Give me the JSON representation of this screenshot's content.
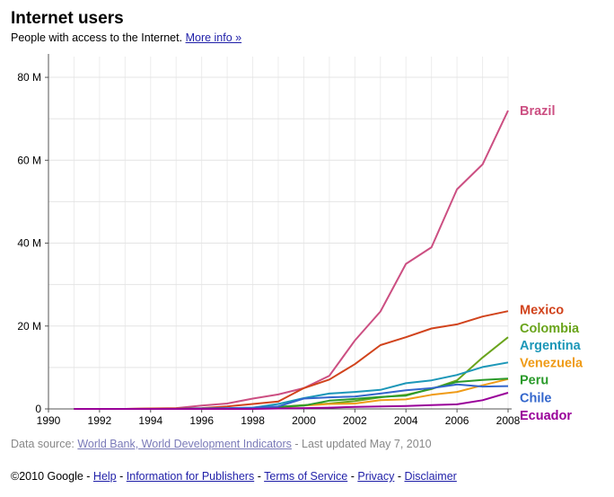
{
  "header": {
    "title": "Internet users",
    "subtitle": "People with access to the Internet.",
    "more_info_link": "More info »"
  },
  "source": {
    "prefix": "Data source:",
    "link": "World Bank, World Development Indicators",
    "suffix": "- Last updated May 7, 2010"
  },
  "footer": {
    "copyright": "©2010 Google -",
    "links": [
      "Help",
      "Information for Publishers",
      "Terms of Service",
      "Privacy",
      "Disclaimer"
    ]
  },
  "chart_data": {
    "type": "line",
    "title": "",
    "xlabel": "",
    "ylabel": "",
    "xlim": [
      1990,
      2008
    ],
    "ylim": [
      0,
      85
    ],
    "x_ticks": [
      1990,
      1992,
      1994,
      1996,
      1998,
      2000,
      2002,
      2004,
      2006,
      2008
    ],
    "x_tick_labels": [
      "1990",
      "1992",
      "1994",
      "1996",
      "1998",
      "2000",
      "2002",
      "2004",
      "2006",
      "2008"
    ],
    "y_ticks": [
      0,
      20,
      40,
      60,
      80
    ],
    "y_tick_labels": [
      "0",
      "20 M",
      "40 M",
      "60 M",
      "80 M"
    ],
    "grid": true,
    "legend": "right, at line ends",
    "x": [
      1991,
      1992,
      1993,
      1994,
      1995,
      1996,
      1997,
      1998,
      1999,
      2000,
      2001,
      2002,
      2003,
      2004,
      2005,
      2006,
      2007,
      2008
    ],
    "series": [
      {
        "name": "Brazil",
        "color": "#cc4f82",
        "label_value": 72,
        "values": [
          0,
          0,
          0,
          0.1,
          0.2,
          0.8,
          1.3,
          2.5,
          3.5,
          5,
          8,
          16.5,
          23.5,
          35,
          39,
          53,
          59,
          72
        ]
      },
      {
        "name": "Mexico",
        "color": "#d1431c",
        "label_value": 24,
        "values": [
          0,
          0,
          0,
          0.1,
          0.1,
          0.2,
          0.6,
          1.2,
          1.8,
          5,
          7.1,
          10.8,
          15.4,
          17.3,
          19.4,
          20.4,
          22.3,
          23.6
        ]
      },
      {
        "name": "Colombia",
        "color": "#6aa41c",
        "label_value": 19.5,
        "values": [
          0,
          0,
          0,
          0,
          0,
          0,
          0.1,
          0.2,
          0.5,
          0.9,
          1.3,
          1.9,
          2.8,
          3.4,
          4.8,
          6.9,
          12.4,
          17.3
        ]
      },
      {
        "name": "Argentina",
        "color": "#1c97b8",
        "label_value": 15.4,
        "values": [
          0,
          0,
          0,
          0,
          0,
          0.1,
          0.1,
          0.3,
          1.2,
          2.6,
          3.7,
          4.1,
          4.6,
          6.2,
          6.9,
          8.2,
          10.1,
          11.2
        ]
      },
      {
        "name": "Venezuela",
        "color": "#ef9b17",
        "label_value": 11.2,
        "values": [
          0,
          0,
          0,
          0,
          0,
          0,
          0.1,
          0.2,
          0.3,
          0.8,
          1.2,
          1.3,
          2.1,
          2.3,
          3.4,
          4.1,
          5.7,
          7.2
        ]
      },
      {
        "name": "Peru",
        "color": "#2a9a2a",
        "label_value": 7,
        "values": [
          0,
          0,
          0,
          0,
          0,
          0,
          0.1,
          0.2,
          0.5,
          0.8,
          2,
          2.4,
          2.9,
          3.2,
          4.9,
          6.5,
          7,
          7.3
        ]
      },
      {
        "name": "Chile",
        "color": "#3366cc",
        "label_value": 2.7,
        "values": [
          0,
          0,
          0,
          0,
          0,
          0.1,
          0.2,
          0.3,
          0.6,
          2.5,
          2.8,
          3,
          3.7,
          4.5,
          5,
          5.9,
          5.4,
          5.5
        ]
      },
      {
        "name": "Ecuador",
        "color": "#990099",
        "label_value": -1.5,
        "values": [
          0,
          0,
          0,
          0,
          0,
          0,
          0,
          0,
          0.1,
          0.2,
          0.3,
          0.5,
          0.6,
          0.7,
          0.9,
          1.1,
          2.1,
          3.9
        ]
      }
    ]
  }
}
